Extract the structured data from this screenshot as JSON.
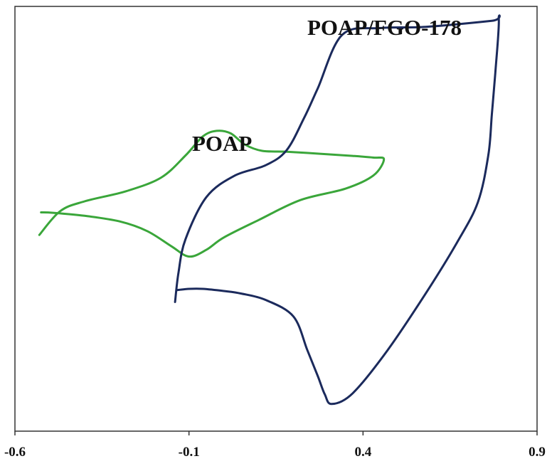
{
  "chart_data": {
    "type": "line",
    "title": "",
    "xlabel": "",
    "ylabel": "",
    "xlim": [
      -0.6,
      0.9
    ],
    "ylim": [
      0,
      1
    ],
    "x_ticks": [
      -0.6,
      -0.1,
      0.4,
      0.9
    ],
    "x_tick_labels": [
      "-0.6",
      "-0.1",
      "0.4",
      "0.9"
    ],
    "grid": false,
    "legend": "none",
    "series": [
      {
        "name": "POAP",
        "color": "#3aa63a",
        "x": [
          -0.53,
          -0.47,
          -0.4,
          -0.28,
          -0.18,
          -0.11,
          -0.06,
          -0.02,
          0.02,
          0.06,
          0.11,
          0.18,
          0.28,
          0.37,
          0.43,
          0.46,
          0.43,
          0.35,
          0.22,
          0.1,
          0.0,
          -0.05,
          -0.1,
          -0.15,
          -0.22,
          -0.3,
          -0.4,
          -0.49,
          -0.525
        ],
        "y": [
          0.462,
          0.518,
          0.541,
          0.565,
          0.597,
          0.649,
          0.694,
          0.707,
          0.701,
          0.675,
          0.66,
          0.658,
          0.653,
          0.648,
          0.644,
          0.64,
          0.602,
          0.571,
          0.544,
          0.497,
          0.456,
          0.427,
          0.411,
          0.435,
          0.471,
          0.494,
          0.507,
          0.514,
          0.515
        ]
      },
      {
        "name": "POAP/FGO-178",
        "color": "#1b2a5c",
        "x": [
          -0.14,
          -0.13,
          -0.11,
          -0.05,
          0.03,
          0.12,
          0.18,
          0.23,
          0.27,
          0.34,
          0.45,
          0.58,
          0.77,
          0.79,
          0.78,
          0.77,
          0.76,
          0.73,
          0.67,
          0.58,
          0.47,
          0.37,
          0.31,
          0.29,
          0.27,
          0.24,
          0.2,
          0.12,
          0.05,
          0.0,
          -0.06,
          -0.1,
          -0.135
        ],
        "y": [
          0.304,
          0.374,
          0.452,
          0.551,
          0.601,
          0.626,
          0.661,
          0.736,
          0.807,
          0.933,
          0.949,
          0.952,
          0.966,
          0.97,
          0.843,
          0.745,
          0.65,
          0.539,
          0.444,
          0.324,
          0.19,
          0.089,
          0.064,
          0.087,
          0.13,
          0.191,
          0.27,
          0.309,
          0.324,
          0.33,
          0.335,
          0.335,
          0.332
        ]
      }
    ],
    "annotations": [
      "POAP",
      "POAP/FGO-178"
    ]
  }
}
